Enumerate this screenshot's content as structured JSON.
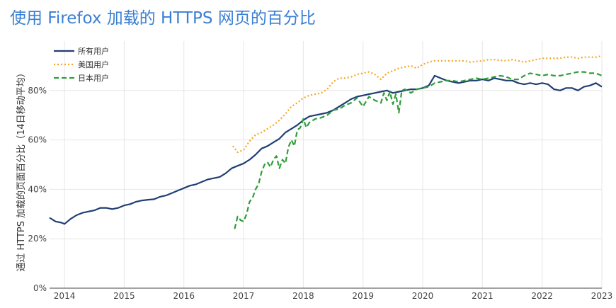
{
  "title": "使用 Firefox 加载的 HTTPS 网页的百分比",
  "chart_data": {
    "type": "line",
    "ylabel": "通过 HTTPS 加载的页面百分比（14日移动平均）",
    "xlabel": "",
    "ylim": [
      0,
      100
    ],
    "yticks": [
      0,
      20,
      40,
      60,
      80
    ],
    "ytick_labels": [
      "0%",
      "20%",
      "40%",
      "60%",
      "80%"
    ],
    "xticks": [
      2014,
      2015,
      2016,
      2017,
      2018,
      2019,
      2020,
      2021,
      2022,
      2023
    ],
    "xtick_labels": [
      "2014",
      "2015",
      "2016",
      "2017",
      "2018",
      "2019",
      "2020",
      "2021",
      "2022",
      "2023"
    ],
    "xlim": [
      2013.75,
      2023.0
    ],
    "grid": true,
    "legend_position": "top-left",
    "series": [
      {
        "name": "所有用户",
        "color": "#1f3f73",
        "dash": "solid",
        "x": [
          2013.75,
          2013.85,
          2013.95,
          2014.0,
          2014.1,
          2014.2,
          2014.3,
          2014.4,
          2014.5,
          2014.6,
          2014.7,
          2014.8,
          2014.9,
          2015.0,
          2015.1,
          2015.2,
          2015.3,
          2015.4,
          2015.5,
          2015.6,
          2015.7,
          2015.8,
          2015.9,
          2016.0,
          2016.1,
          2016.2,
          2016.3,
          2016.4,
          2016.5,
          2016.6,
          2016.7,
          2016.8,
          2016.9,
          2017.0,
          2017.1,
          2017.2,
          2017.3,
          2017.4,
          2017.5,
          2017.6,
          2017.7,
          2017.8,
          2017.9,
          2018.0,
          2018.1,
          2018.2,
          2018.3,
          2018.4,
          2018.5,
          2018.6,
          2018.7,
          2018.8,
          2018.9,
          2019.0,
          2019.1,
          2019.2,
          2019.3,
          2019.4,
          2019.5,
          2019.6,
          2019.7,
          2019.8,
          2019.9,
          2020.0,
          2020.1,
          2020.2,
          2020.3,
          2020.4,
          2020.5,
          2020.6,
          2020.7,
          2020.8,
          2020.9,
          2021.0,
          2021.1,
          2021.2,
          2021.3,
          2021.4,
          2021.5,
          2021.6,
          2021.7,
          2021.8,
          2021.9,
          2022.0,
          2022.1,
          2022.2,
          2022.3,
          2022.4,
          2022.5,
          2022.6,
          2022.7,
          2022.8,
          2022.9,
          2023.0
        ],
        "values": [
          28.5,
          27.0,
          26.5,
          26.0,
          28.0,
          29.5,
          30.5,
          31.0,
          31.5,
          32.5,
          32.5,
          32.0,
          32.5,
          33.5,
          34.0,
          35.0,
          35.5,
          35.8,
          36.0,
          37.0,
          37.5,
          38.5,
          39.5,
          40.5,
          41.5,
          42.0,
          43.0,
          44.0,
          44.5,
          45.0,
          46.5,
          48.5,
          49.5,
          50.5,
          52.0,
          54.0,
          56.5,
          57.5,
          59.0,
          60.5,
          63.0,
          64.5,
          66.0,
          68.0,
          69.5,
          70.0,
          70.5,
          71.0,
          72.0,
          73.5,
          75.0,
          76.5,
          77.5,
          78.0,
          78.5,
          79.0,
          79.5,
          80.0,
          79.0,
          79.5,
          80.0,
          80.5,
          80.5,
          81.0,
          82.0,
          86.0,
          85.0,
          84.0,
          83.5,
          83.0,
          83.5,
          84.0,
          84.0,
          84.5,
          84.0,
          85.0,
          84.5,
          84.0,
          84.0,
          83.0,
          82.5,
          83.0,
          82.5,
          83.0,
          82.5,
          80.5,
          80.0,
          81.0,
          81.0,
          80.0,
          81.5,
          82.0,
          83.0,
          81.5
        ]
      },
      {
        "name": "美国用户",
        "color": "#f5a623",
        "dash": "dotted",
        "x": [
          2016.82,
          2016.9,
          2017.0,
          2017.1,
          2017.2,
          2017.3,
          2017.4,
          2017.5,
          2017.6,
          2017.7,
          2017.8,
          2017.9,
          2018.0,
          2018.1,
          2018.2,
          2018.3,
          2018.4,
          2018.5,
          2018.6,
          2018.7,
          2018.8,
          2018.9,
          2019.0,
          2019.1,
          2019.2,
          2019.3,
          2019.4,
          2019.5,
          2019.6,
          2019.7,
          2019.8,
          2019.9,
          2020.0,
          2020.1,
          2020.2,
          2020.3,
          2020.4,
          2020.5,
          2020.6,
          2020.7,
          2020.8,
          2020.9,
          2021.0,
          2021.1,
          2021.2,
          2021.3,
          2021.4,
          2021.5,
          2021.6,
          2021.7,
          2021.8,
          2021.9,
          2022.0,
          2022.1,
          2022.2,
          2022.3,
          2022.4,
          2022.5,
          2022.6,
          2022.7,
          2022.8,
          2022.9,
          2023.0
        ],
        "values": [
          57.5,
          55.0,
          56.0,
          59.5,
          62.0,
          63.0,
          64.5,
          66.0,
          68.0,
          70.5,
          73.5,
          75.0,
          77.0,
          78.0,
          78.5,
          79.0,
          80.5,
          83.5,
          85.0,
          85.0,
          85.5,
          86.5,
          87.0,
          87.5,
          86.5,
          84.5,
          87.0,
          88.0,
          89.0,
          89.5,
          90.0,
          89.0,
          90.5,
          91.5,
          92.0,
          92.0,
          92.0,
          92.0,
          92.0,
          92.0,
          91.5,
          91.8,
          92.0,
          92.5,
          92.5,
          92.2,
          92.0,
          92.5,
          92.0,
          91.5,
          92.0,
          92.5,
          93.0,
          93.0,
          93.0,
          93.0,
          93.5,
          93.5,
          93.0,
          93.5,
          93.5,
          93.5,
          94.0
        ]
      },
      {
        "name": "日本用户",
        "color": "#2e9e38",
        "dash": "dashed",
        "x": [
          2016.85,
          2016.9,
          2016.95,
          2017.0,
          2017.05,
          2017.1,
          2017.15,
          2017.2,
          2017.25,
          2017.3,
          2017.35,
          2017.4,
          2017.45,
          2017.5,
          2017.55,
          2017.6,
          2017.65,
          2017.7,
          2017.75,
          2017.8,
          2017.85,
          2017.9,
          2017.95,
          2018.0,
          2018.05,
          2018.1,
          2018.2,
          2018.3,
          2018.4,
          2018.5,
          2018.6,
          2018.7,
          2018.8,
          2018.9,
          2019.0,
          2019.1,
          2019.2,
          2019.3,
          2019.35,
          2019.4,
          2019.45,
          2019.5,
          2019.55,
          2019.6,
          2019.65,
          2019.7,
          2019.75,
          2019.8,
          2019.9,
          2020.0,
          2020.1,
          2020.2,
          2020.3,
          2020.4,
          2020.5,
          2020.6,
          2020.7,
          2020.8,
          2020.9,
          2021.0,
          2021.1,
          2021.2,
          2021.3,
          2021.4,
          2021.5,
          2021.6,
          2021.7,
          2021.8,
          2021.9,
          2022.0,
          2022.1,
          2022.2,
          2022.3,
          2022.4,
          2022.5,
          2022.6,
          2022.7,
          2022.8,
          2022.9,
          2023.0
        ],
        "values": [
          24.0,
          29.0,
          27.5,
          27.0,
          30.0,
          35.0,
          36.5,
          40.0,
          42.0,
          47.0,
          50.0,
          51.0,
          49.0,
          52.0,
          53.5,
          48.5,
          52.0,
          50.5,
          57.0,
          60.0,
          57.5,
          64.0,
          65.0,
          68.5,
          65.0,
          67.0,
          68.5,
          69.0,
          70.0,
          72.0,
          72.5,
          74.0,
          75.0,
          77.0,
          73.5,
          77.5,
          76.0,
          75.0,
          79.0,
          76.0,
          79.5,
          74.5,
          78.5,
          71.0,
          80.0,
          80.5,
          80.0,
          79.0,
          80.5,
          81.0,
          81.5,
          83.0,
          83.5,
          84.0,
          84.0,
          83.5,
          84.0,
          84.5,
          85.0,
          84.5,
          85.0,
          85.5,
          86.0,
          85.5,
          84.5,
          84.5,
          86.0,
          87.0,
          86.5,
          86.0,
          86.5,
          86.0,
          86.0,
          86.5,
          87.0,
          87.5,
          87.5,
          87.0,
          87.0,
          86.0
        ]
      }
    ]
  }
}
